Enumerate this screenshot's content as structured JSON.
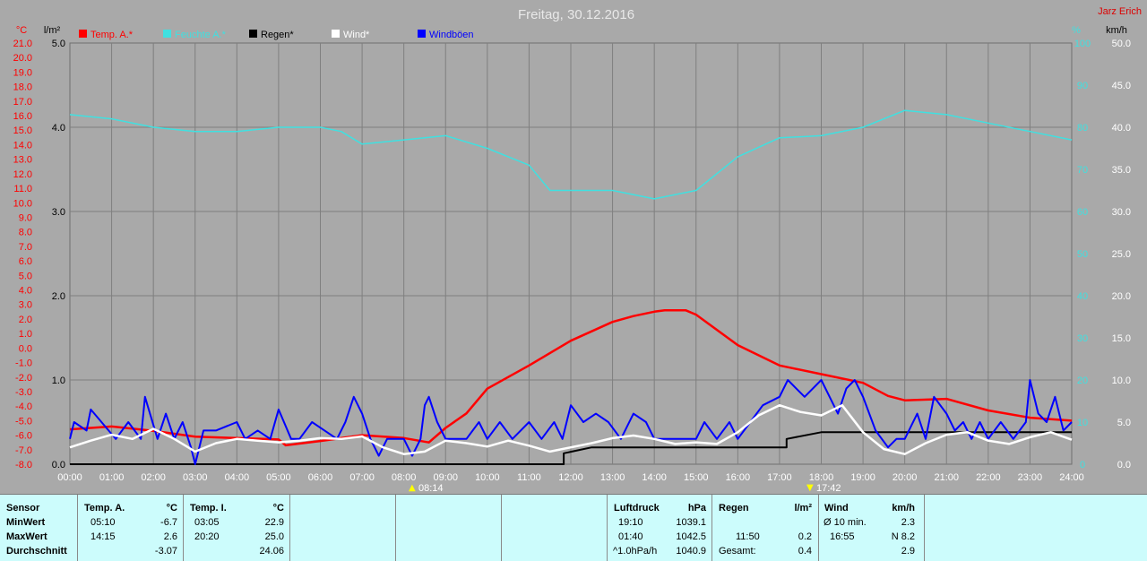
{
  "header": {
    "title": "Freitag, 30.12.2016",
    "author": "Jarz Erich"
  },
  "colors": {
    "temp": "#ff0000",
    "pressure": "#40e0e0",
    "rain": "#000000",
    "wind": "#ffffff",
    "gust": "#0000ff",
    "background": "#a9a9a9",
    "grid": "#7f7f7f",
    "table": "#ccfcfc"
  },
  "axis_units": {
    "temp": "°C",
    "rain": "l/m²",
    "pressure": "%",
    "wind": "km/h"
  },
  "sun": {
    "rise": "08:14",
    "set": "17:42"
  },
  "chart_data": {
    "type": "line",
    "title": "Freitag, 30.12.2016",
    "x_labels": [
      "00:00",
      "01:00",
      "02:00",
      "03:00",
      "04:00",
      "05:00",
      "06:00",
      "07:00",
      "08:00",
      "09:00",
      "10:00",
      "11:00",
      "12:00",
      "13:00",
      "14:00",
      "15:00",
      "16:00",
      "17:00",
      "18:00",
      "19:00",
      "20:00",
      "21:00",
      "22:00",
      "23:00",
      "24:00"
    ],
    "axes": {
      "temp": {
        "unit": "°C",
        "range": [
          -8,
          21
        ],
        "ticks": [
          "21.0",
          "20.0",
          "19.0",
          "18.0",
          "17.0",
          "16.0",
          "15.0",
          "14.0",
          "13.0",
          "12.0",
          "11.0",
          "10.0",
          "9.0",
          "8.0",
          "7.0",
          "6.0",
          "5.0",
          "4.0",
          "3.0",
          "2.0",
          "1.0",
          "0.0",
          "-1.0",
          "-2.0",
          "-3.0",
          "-4.0",
          "-5.0",
          "-6.0",
          "-7.0",
          "-8.0"
        ]
      },
      "rain": {
        "unit": "l/m²",
        "range": [
          0,
          5
        ],
        "ticks": [
          "5.0",
          "4.0",
          "3.0",
          "2.0",
          "1.0",
          "0.0"
        ]
      },
      "pressure": {
        "unit": "%",
        "range": [
          0,
          100
        ],
        "ticks": [
          "100",
          "90",
          "80",
          "70",
          "60",
          "50",
          "40",
          "30",
          "20",
          "10",
          "0"
        ]
      },
      "wind": {
        "unit": "km/h",
        "range": [
          0,
          50
        ],
        "ticks": [
          "50.0",
          "45.0",
          "40.0",
          "35.0",
          "30.0",
          "25.0",
          "20.0",
          "15.0",
          "10.0",
          "5.0",
          "0.0"
        ]
      }
    },
    "legend": [
      {
        "name": "Temp. A.*",
        "color": "#ff0000"
      },
      {
        "name": "Feuchte A.*",
        "color": "#40e0e0"
      },
      {
        "name": "Regen*",
        "color": "#000000"
      },
      {
        "name": "Wind*",
        "color": "#ffffff"
      },
      {
        "name": "Windböen",
        "color": "#0000ff"
      }
    ],
    "series": [
      {
        "name": "Temp. A.*",
        "axis": "temp",
        "points": [
          [
            0,
            -5.6
          ],
          [
            1,
            -5.4
          ],
          [
            2,
            -5.7
          ],
          [
            3,
            -6.1
          ],
          [
            4,
            -6.2
          ],
          [
            5,
            -6.3
          ],
          [
            5.17,
            -6.7
          ],
          [
            6,
            -6.4
          ],
          [
            7,
            -6.0
          ],
          [
            8,
            -6.2
          ],
          [
            8.6,
            -6.5
          ],
          [
            9,
            -5.5
          ],
          [
            9.5,
            -4.5
          ],
          [
            10,
            -2.8
          ],
          [
            11,
            -1.2
          ],
          [
            12,
            0.5
          ],
          [
            13,
            1.8
          ],
          [
            13.5,
            2.2
          ],
          [
            14,
            2.5
          ],
          [
            14.25,
            2.6
          ],
          [
            14.75,
            2.6
          ],
          [
            15,
            2.3
          ],
          [
            16,
            0.2
          ],
          [
            17,
            -1.2
          ],
          [
            18,
            -1.8
          ],
          [
            19,
            -2.4
          ],
          [
            19.6,
            -3.3
          ],
          [
            20,
            -3.6
          ],
          [
            21,
            -3.5
          ],
          [
            22,
            -4.3
          ],
          [
            23,
            -4.8
          ],
          [
            24,
            -5.0
          ]
        ]
      },
      {
        "name": "Feuchte A.*",
        "axis": "pressure",
        "points": [
          [
            0,
            83
          ],
          [
            1,
            82
          ],
          [
            2,
            80
          ],
          [
            3,
            79
          ],
          [
            4,
            79
          ],
          [
            5,
            80
          ],
          [
            6,
            80
          ],
          [
            6.5,
            79
          ],
          [
            7,
            76
          ],
          [
            8,
            77
          ],
          [
            9,
            78
          ],
          [
            10,
            75
          ],
          [
            11,
            71
          ],
          [
            11.5,
            65
          ],
          [
            12,
            65
          ],
          [
            13,
            65
          ],
          [
            14,
            63
          ],
          [
            15,
            65
          ],
          [
            16,
            73
          ],
          [
            17,
            77.5
          ],
          [
            18,
            78
          ],
          [
            19,
            80
          ],
          [
            20,
            84
          ],
          [
            21,
            83
          ],
          [
            22,
            81
          ],
          [
            23,
            79
          ],
          [
            24,
            77
          ]
        ]
      },
      {
        "name": "Regen*",
        "axis": "rain",
        "points": [
          [
            0,
            0
          ],
          [
            11.83,
            0
          ],
          [
            11.83,
            0.13
          ],
          [
            12.5,
            0.2
          ],
          [
            17.17,
            0.2
          ],
          [
            17.17,
            0.3
          ],
          [
            18,
            0.38
          ],
          [
            24,
            0.38
          ]
        ]
      },
      {
        "name": "Wind*",
        "axis": "wind",
        "points": [
          [
            0,
            2
          ],
          [
            0.5,
            2.8
          ],
          [
            1,
            3.5
          ],
          [
            1.5,
            3.0
          ],
          [
            2,
            4.2
          ],
          [
            2.5,
            3.0
          ],
          [
            3,
            1.5
          ],
          [
            3.5,
            2.5
          ],
          [
            4,
            3.0
          ],
          [
            4.5,
            2.8
          ],
          [
            5,
            2.6
          ],
          [
            5.5,
            2.8
          ],
          [
            6,
            3.1
          ],
          [
            6.5,
            3.0
          ],
          [
            7,
            3.3
          ],
          [
            7.5,
            2.0
          ],
          [
            8,
            1.2
          ],
          [
            8.5,
            1.5
          ],
          [
            9,
            2.8
          ],
          [
            9.5,
            2.5
          ],
          [
            10,
            2.1
          ],
          [
            10.5,
            2.8
          ],
          [
            11,
            2.2
          ],
          [
            11.5,
            1.5
          ],
          [
            12,
            2.0
          ],
          [
            12.5,
            2.5
          ],
          [
            13,
            3.1
          ],
          [
            13.5,
            3.4
          ],
          [
            14,
            3.0
          ],
          [
            14.5,
            2.4
          ],
          [
            15,
            2.6
          ],
          [
            15.5,
            2.4
          ],
          [
            16,
            3.8
          ],
          [
            16.5,
            5.8
          ],
          [
            17,
            7.0
          ],
          [
            17.5,
            6.2
          ],
          [
            18,
            5.8
          ],
          [
            18.5,
            7.0
          ],
          [
            19,
            3.8
          ],
          [
            19.5,
            1.8
          ],
          [
            20,
            1.2
          ],
          [
            20.5,
            2.5
          ],
          [
            21,
            3.5
          ],
          [
            21.5,
            3.8
          ],
          [
            22,
            2.8
          ],
          [
            22.5,
            2.4
          ],
          [
            23,
            3.2
          ],
          [
            23.5,
            3.8
          ],
          [
            24,
            2.9
          ]
        ]
      },
      {
        "name": "Windböen",
        "axis": "wind",
        "points": [
          [
            0,
            3
          ],
          [
            0.1,
            5
          ],
          [
            0.4,
            4
          ],
          [
            0.5,
            6.5
          ],
          [
            1.1,
            3
          ],
          [
            1.4,
            5
          ],
          [
            1.7,
            3
          ],
          [
            1.8,
            8
          ],
          [
            2.1,
            3
          ],
          [
            2.3,
            6
          ],
          [
            2.5,
            3
          ],
          [
            2.7,
            5
          ],
          [
            2.9,
            2
          ],
          [
            3,
            0
          ],
          [
            3.2,
            4
          ],
          [
            3.5,
            4
          ],
          [
            4,
            5
          ],
          [
            4.2,
            3
          ],
          [
            4.5,
            4
          ],
          [
            4.8,
            3
          ],
          [
            5,
            6.5
          ],
          [
            5.3,
            3
          ],
          [
            5.5,
            3
          ],
          [
            5.8,
            5
          ],
          [
            6.1,
            4
          ],
          [
            6.4,
            3
          ],
          [
            6.6,
            5
          ],
          [
            6.8,
            8
          ],
          [
            7,
            6
          ],
          [
            7.2,
            3
          ],
          [
            7.4,
            1
          ],
          [
            7.6,
            3
          ],
          [
            8,
            3
          ],
          [
            8.2,
            1
          ],
          [
            8.4,
            3
          ],
          [
            8.5,
            7
          ],
          [
            8.6,
            8
          ],
          [
            8.8,
            5
          ],
          [
            9,
            3
          ],
          [
            9.5,
            3
          ],
          [
            9.8,
            5
          ],
          [
            10,
            3
          ],
          [
            10.3,
            5
          ],
          [
            10.6,
            3
          ],
          [
            11,
            5
          ],
          [
            11.3,
            3
          ],
          [
            11.6,
            5
          ],
          [
            11.8,
            3
          ],
          [
            12,
            7
          ],
          [
            12.3,
            5
          ],
          [
            12.6,
            6
          ],
          [
            12.9,
            5
          ],
          [
            13.2,
            3
          ],
          [
            13.5,
            6
          ],
          [
            13.8,
            5
          ],
          [
            14,
            3
          ],
          [
            14.5,
            3
          ],
          [
            15,
            3
          ],
          [
            15.2,
            5
          ],
          [
            15.5,
            3
          ],
          [
            15.8,
            5
          ],
          [
            16,
            3
          ],
          [
            16.3,
            5
          ],
          [
            16.6,
            7
          ],
          [
            17,
            8
          ],
          [
            17.2,
            10
          ],
          [
            17.4,
            9
          ],
          [
            17.6,
            8
          ],
          [
            18,
            10
          ],
          [
            18.2,
            8
          ],
          [
            18.4,
            6
          ],
          [
            18.6,
            9
          ],
          [
            18.8,
            10
          ],
          [
            19,
            8
          ],
          [
            19.3,
            4
          ],
          [
            19.6,
            2
          ],
          [
            19.8,
            3
          ],
          [
            20,
            3
          ],
          [
            20.3,
            6
          ],
          [
            20.5,
            3
          ],
          [
            20.7,
            8
          ],
          [
            21,
            6
          ],
          [
            21.2,
            4
          ],
          [
            21.4,
            5
          ],
          [
            21.6,
            3
          ],
          [
            21.8,
            5
          ],
          [
            22,
            3
          ],
          [
            22.3,
            5
          ],
          [
            22.6,
            3
          ],
          [
            22.9,
            5
          ],
          [
            23,
            10
          ],
          [
            23.2,
            6
          ],
          [
            23.4,
            5
          ],
          [
            23.6,
            8
          ],
          [
            23.8,
            4
          ],
          [
            24,
            5
          ]
        ]
      }
    ]
  },
  "table": {
    "sensor": {
      "header": "Sensor",
      "rows": [
        "MinWert",
        "MaxWert",
        "Durchschnitt"
      ]
    },
    "temp_a": {
      "title": "Temp. A.",
      "unit": "°C",
      "min_time": "05:10",
      "min_value": "-6.7",
      "max_time": "14:15",
      "max_value": "2.6",
      "avg": "-3.07"
    },
    "temp_i": {
      "title": "Temp. I.",
      "unit": "°C",
      "min_time": "03:05",
      "min_value": "22.9",
      "max_time": "20:20",
      "max_value": "25.0",
      "avg": "24.06"
    },
    "pressure": {
      "title": "Luftdruck",
      "unit": "hPa",
      "min_time": "19:10",
      "min_value": "1039.1",
      "max_time": "01:40",
      "max_value": "1042.5",
      "trend": "^1.0hPa/h",
      "avg": "1040.9"
    },
    "rain": {
      "title": "Regen",
      "unit": "l/m²",
      "time": "11:50",
      "value": "0.2",
      "total_label": "Gesamt:",
      "total": "0.4"
    },
    "wind": {
      "title": "Wind",
      "unit": "km/h",
      "avg_label": "Ø 10 min.",
      "avg_value": "2.3",
      "max_time": "16:55",
      "max_value": "N 8.2",
      "mean": "2.9"
    }
  }
}
